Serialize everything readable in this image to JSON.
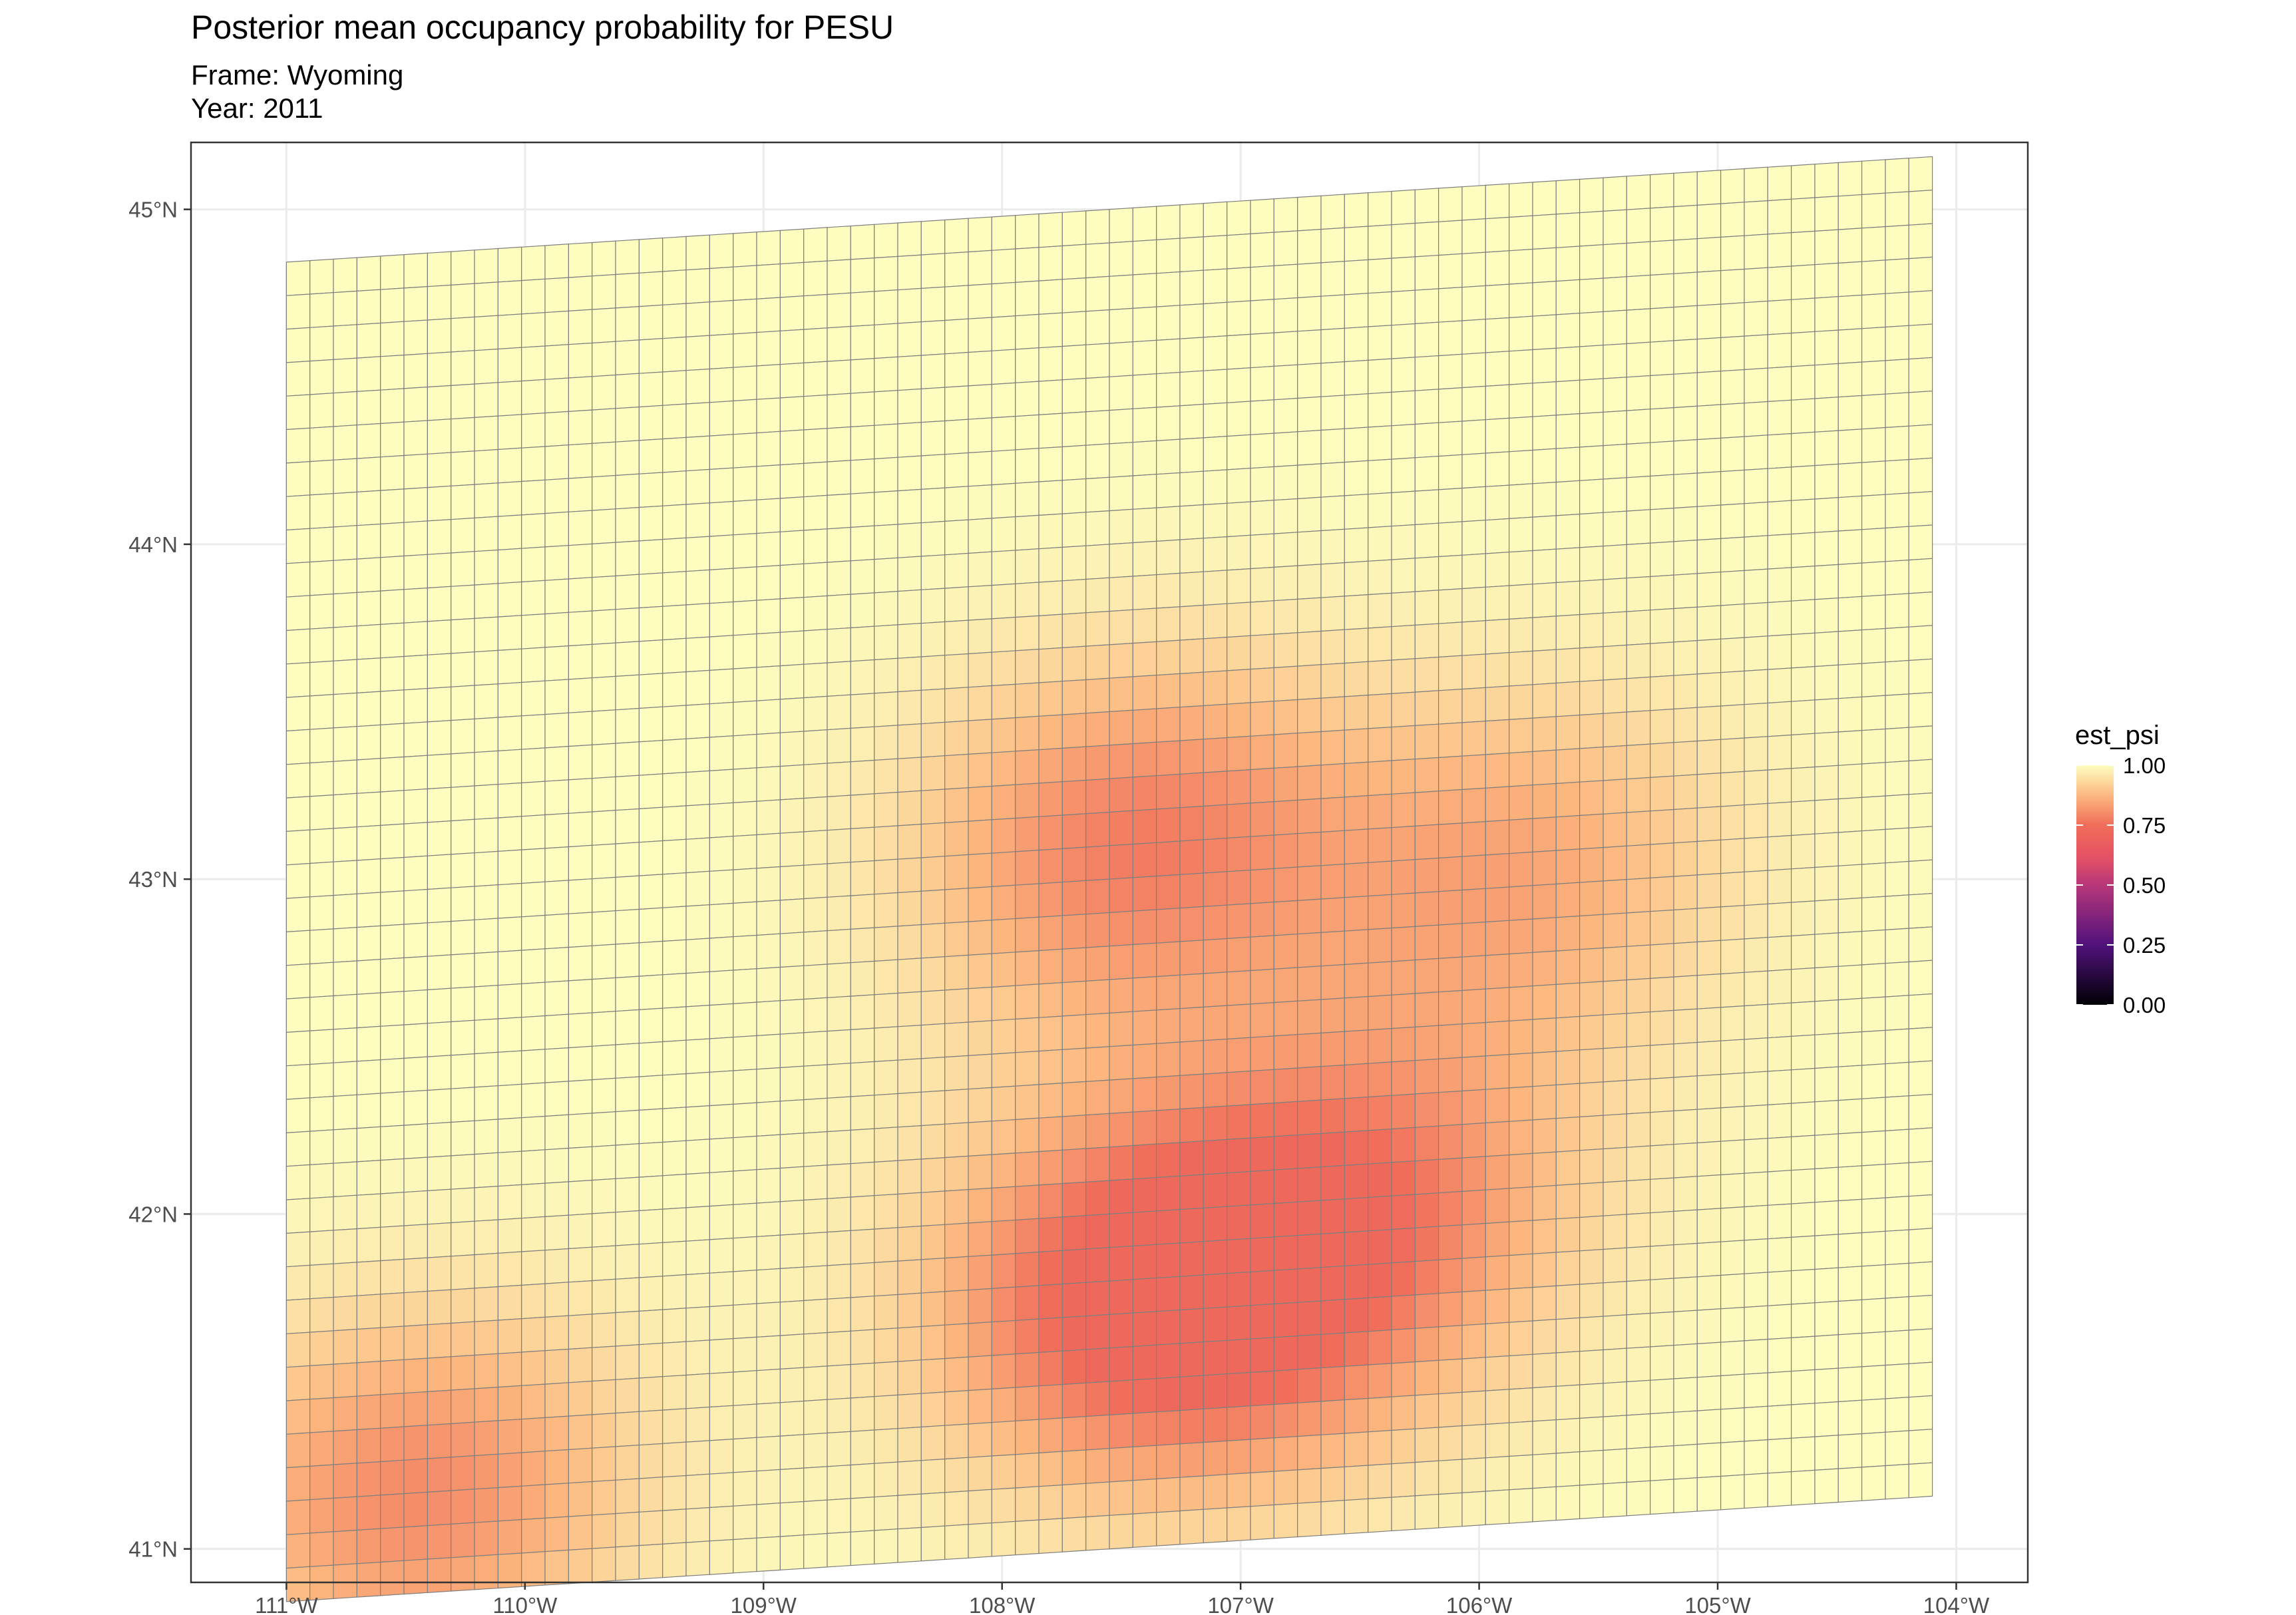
{
  "chart_data": {
    "type": "heatmap",
    "title": "Posterior mean occupancy probability for PESU",
    "subtitle_lines": [
      "Frame: Wyoming",
      "Year: 2011"
    ],
    "xlabel": "",
    "ylabel": "",
    "x_ticks": [
      {
        "value": -111,
        "label": "111°W"
      },
      {
        "value": -110,
        "label": "110°W"
      },
      {
        "value": -109,
        "label": "109°W"
      },
      {
        "value": -108,
        "label": "108°W"
      },
      {
        "value": -107,
        "label": "107°W"
      },
      {
        "value": -106,
        "label": "106°W"
      },
      {
        "value": -105,
        "label": "105°W"
      },
      {
        "value": -104,
        "label": "104°W"
      }
    ],
    "y_ticks": [
      {
        "value": 41,
        "label": "41°N"
      },
      {
        "value": 42,
        "label": "42°N"
      },
      {
        "value": 43,
        "label": "43°N"
      },
      {
        "value": 44,
        "label": "44°N"
      },
      {
        "value": 45,
        "label": "45°N"
      }
    ],
    "xlim": [
      -111.4,
      -103.7
    ],
    "ylim": [
      40.9,
      45.2
    ],
    "grid": true,
    "colorscale": "magma",
    "legend": {
      "title": "est_psi",
      "position": "right",
      "range": [
        0,
        1
      ],
      "breaks": [
        {
          "value": 1.0,
          "label": "1.00"
        },
        {
          "value": 0.75,
          "label": "0.75"
        },
        {
          "value": 0.5,
          "label": "0.50"
        },
        {
          "value": 0.25,
          "label": "0.25"
        },
        {
          "value": 0.0,
          "label": "0.00"
        }
      ]
    },
    "grid_extent": {
      "lon_range": [
        -111.0,
        -104.1
      ],
      "lat_range": [
        41.0,
        45.0
      ],
      "rows": 40,
      "cols": 70
    },
    "hotspots": [
      {
        "lon": -107.45,
        "lat": 43.1,
        "min_value": 0.78
      },
      {
        "lon": -110.45,
        "lat": 41.3,
        "min_value": 0.8
      },
      {
        "lon": -107.5,
        "lat": 41.8,
        "min_value": 0.82
      },
      {
        "lon": -106.45,
        "lat": 42.0,
        "min_value": 0.82
      },
      {
        "lon": -105.85,
        "lat": 42.95,
        "min_value": 0.85
      },
      {
        "lon": -107.1,
        "lat": 41.65,
        "min_value": 0.84
      }
    ]
  }
}
